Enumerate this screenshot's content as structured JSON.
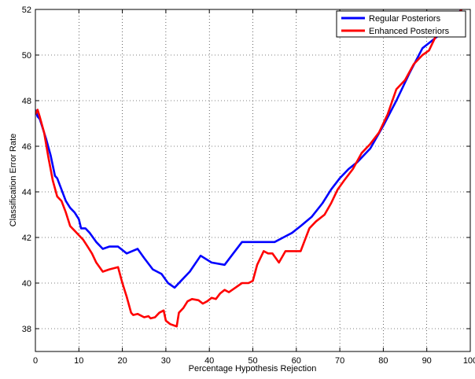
{
  "chart_data": {
    "type": "line",
    "xlabel": "Percentage Hypothesis Rejection",
    "ylabel": "Classification Error Rate",
    "xlim": [
      0,
      100
    ],
    "ylim": [
      37,
      52
    ],
    "xticks": [
      0,
      10,
      20,
      30,
      40,
      50,
      60,
      70,
      80,
      90,
      100
    ],
    "yticks": [
      38,
      40,
      42,
      44,
      46,
      48,
      50,
      52
    ],
    "grid": true,
    "legend_position": "top-right",
    "series": [
      {
        "name": "Regular Posteriors",
        "color": "#0000ff",
        "points": [
          [
            0,
            47.6
          ],
          [
            0.5,
            47.3
          ],
          [
            1,
            47.2
          ],
          [
            1.5,
            46.9
          ],
          [
            2.5,
            46.3
          ],
          [
            3.5,
            45.6
          ],
          [
            4.5,
            44.7
          ],
          [
            5,
            44.6
          ],
          [
            6,
            44.1
          ],
          [
            7,
            43.6
          ],
          [
            8,
            43.3
          ],
          [
            9,
            43.1
          ],
          [
            10,
            42.8
          ],
          [
            10.5,
            42.4
          ],
          [
            11.5,
            42.4
          ],
          [
            12.5,
            42.2
          ],
          [
            14,
            41.8
          ],
          [
            15.5,
            41.5
          ],
          [
            17,
            41.6
          ],
          [
            19,
            41.6
          ],
          [
            21,
            41.3
          ],
          [
            23.5,
            41.5
          ],
          [
            25,
            41.1
          ],
          [
            27,
            40.6
          ],
          [
            29,
            40.4
          ],
          [
            30.5,
            40.0
          ],
          [
            32,
            39.8
          ],
          [
            34,
            40.2
          ],
          [
            35.5,
            40.5
          ],
          [
            38,
            41.2
          ],
          [
            40.5,
            40.9
          ],
          [
            43.5,
            40.8
          ],
          [
            45.5,
            41.3
          ],
          [
            47.5,
            41.8
          ],
          [
            51,
            41.8
          ],
          [
            55,
            41.8
          ],
          [
            57,
            42.0
          ],
          [
            59,
            42.2
          ],
          [
            61,
            42.5
          ],
          [
            63.5,
            42.9
          ],
          [
            66,
            43.5
          ],
          [
            68,
            44.1
          ],
          [
            70,
            44.6
          ],
          [
            72,
            45.0
          ],
          [
            74,
            45.3
          ],
          [
            77,
            45.9
          ],
          [
            80,
            46.9
          ],
          [
            83,
            48.0
          ],
          [
            86,
            49.2
          ],
          [
            89,
            50.3
          ],
          [
            91,
            50.6
          ],
          [
            93,
            50.9
          ],
          [
            95,
            51.3
          ],
          [
            97,
            51.8
          ],
          [
            98,
            52.0
          ]
        ]
      },
      {
        "name": "Enhanced Posteriors",
        "color": "#ff0000",
        "points": [
          [
            0,
            47.4
          ],
          [
            0.5,
            47.6
          ],
          [
            1,
            47.3
          ],
          [
            2,
            46.6
          ],
          [
            3,
            45.5
          ],
          [
            4,
            44.5
          ],
          [
            5,
            43.8
          ],
          [
            6,
            43.6
          ],
          [
            7,
            43.1
          ],
          [
            8,
            42.5
          ],
          [
            9,
            42.3
          ],
          [
            10,
            42.1
          ],
          [
            11,
            41.9
          ],
          [
            12,
            41.6
          ],
          [
            13,
            41.3
          ],
          [
            14,
            40.9
          ],
          [
            15.5,
            40.5
          ],
          [
            17,
            40.6
          ],
          [
            19,
            40.7
          ],
          [
            20,
            40.0
          ],
          [
            21,
            39.4
          ],
          [
            22,
            38.7
          ],
          [
            22.5,
            38.6
          ],
          [
            23.5,
            38.65
          ],
          [
            25,
            38.5
          ],
          [
            26,
            38.55
          ],
          [
            26.5,
            38.45
          ],
          [
            27.5,
            38.5
          ],
          [
            28.5,
            38.7
          ],
          [
            29.5,
            38.8
          ],
          [
            30,
            38.35
          ],
          [
            31,
            38.2
          ],
          [
            32.5,
            38.1
          ],
          [
            33,
            38.7
          ],
          [
            34,
            38.9
          ],
          [
            35,
            39.2
          ],
          [
            36,
            39.3
          ],
          [
            37.5,
            39.25
          ],
          [
            38.5,
            39.1
          ],
          [
            39.5,
            39.2
          ],
          [
            40.5,
            39.35
          ],
          [
            41.5,
            39.3
          ],
          [
            42.5,
            39.55
          ],
          [
            43.5,
            39.7
          ],
          [
            44.5,
            39.6
          ],
          [
            46,
            39.8
          ],
          [
            47.5,
            40.0
          ],
          [
            49,
            40.0
          ],
          [
            50,
            40.1
          ],
          [
            51,
            40.8
          ],
          [
            52.5,
            41.4
          ],
          [
            53.5,
            41.3
          ],
          [
            54.5,
            41.3
          ],
          [
            56,
            40.9
          ],
          [
            57.5,
            41.4
          ],
          [
            59,
            41.4
          ],
          [
            61,
            41.4
          ],
          [
            63,
            42.4
          ],
          [
            64.5,
            42.7
          ],
          [
            66.5,
            43.0
          ],
          [
            68,
            43.5
          ],
          [
            69.5,
            44.1
          ],
          [
            71,
            44.5
          ],
          [
            73,
            45.0
          ],
          [
            75,
            45.7
          ],
          [
            77,
            46.1
          ],
          [
            79,
            46.6
          ],
          [
            81,
            47.4
          ],
          [
            83,
            48.5
          ],
          [
            85,
            48.9
          ],
          [
            87,
            49.6
          ],
          [
            89,
            50.0
          ],
          [
            90.5,
            50.2
          ],
          [
            92,
            50.8
          ],
          [
            94,
            51.2
          ],
          [
            96,
            51.5
          ],
          [
            98,
            52.0
          ]
        ]
      }
    ]
  }
}
